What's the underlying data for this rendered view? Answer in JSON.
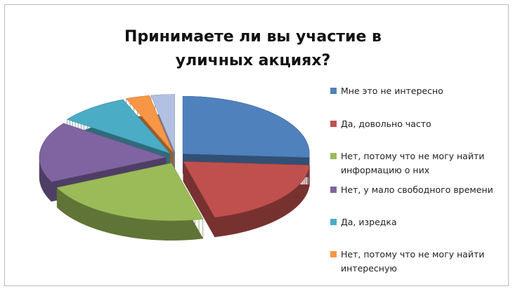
{
  "chart_data": {
    "type": "pie3d",
    "title": "Принимаете ли вы участие в уличных акциях?",
    "categories": [
      "Мне это не интересно",
      "Да, довольно часто",
      "Нет, потому что не могу найти информацию о них",
      "Нет, у мало свободного времени",
      "Да, изредка",
      "Нет, потому что не могу найти интересную",
      null
    ],
    "values": [
      26,
      20,
      22,
      17,
      9,
      3,
      3
    ],
    "colors": [
      "#4f81bd",
      "#c0504d",
      "#9bbb59",
      "#8064a2",
      "#4bacc6",
      "#f79646",
      "#b4c0e2"
    ],
    "legend": "right"
  }
}
